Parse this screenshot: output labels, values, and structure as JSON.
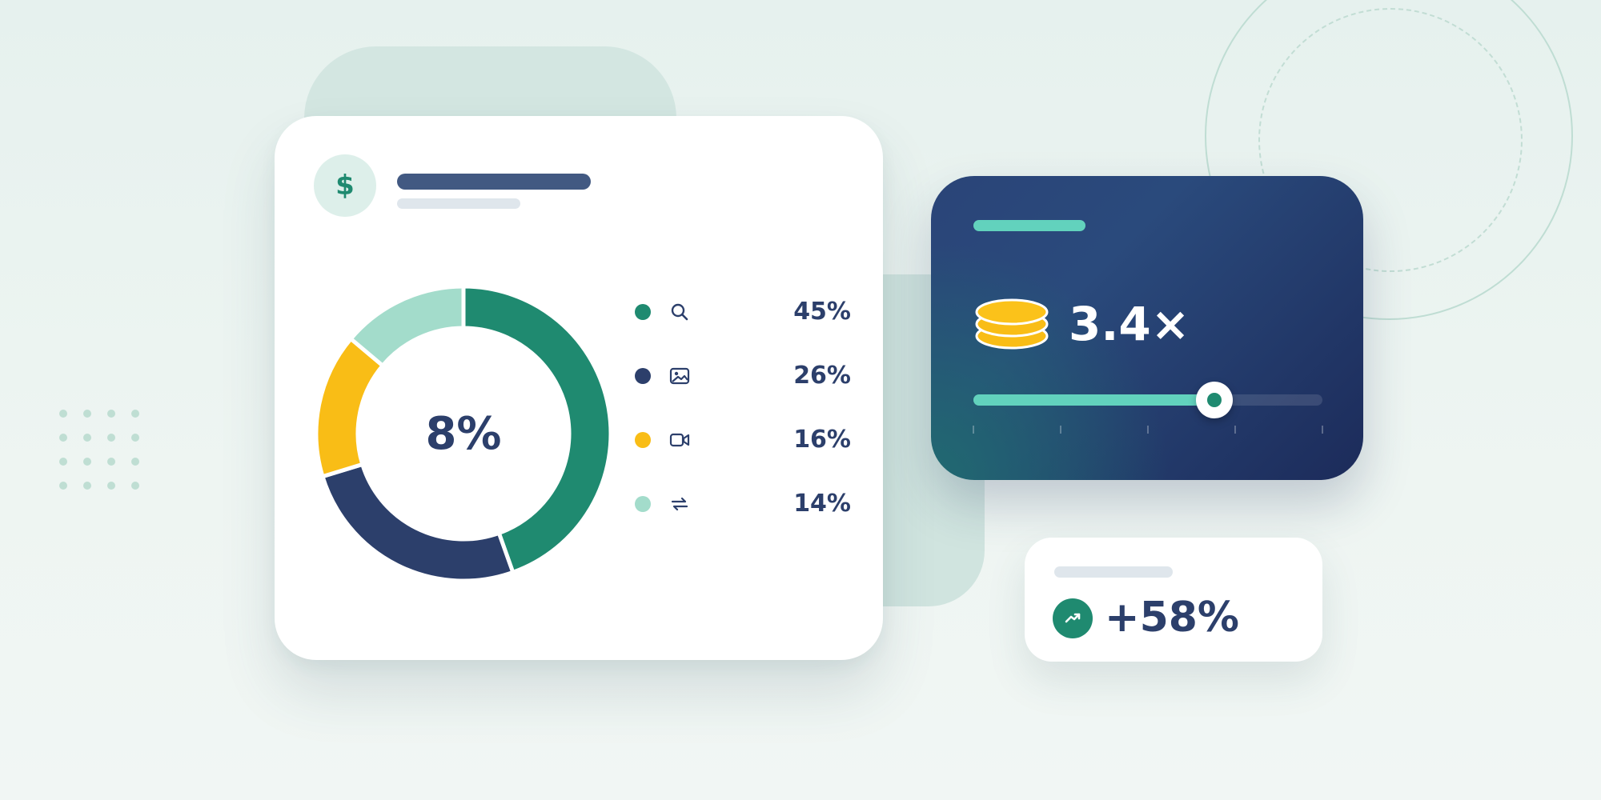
{
  "colors": {
    "teal": "#1f8a70",
    "navy": "#2c3f6b",
    "yellow": "#f9bd16",
    "mint": "#a3dccb",
    "accent": "#62d2bd"
  },
  "breakdown_card": {
    "badge_icon": "dollar-icon",
    "badge_symbol": "$",
    "center_value": "8%",
    "legend": [
      {
        "icon": "search-icon",
        "value": "45%",
        "color": "#1f8a70"
      },
      {
        "icon": "image-icon",
        "value": "26%",
        "color": "#2c3f6b"
      },
      {
        "icon": "video-icon",
        "value": "16%",
        "color": "#f9bd16"
      },
      {
        "icon": "repeat-icon",
        "value": "14%",
        "color": "#a3dccb"
      }
    ]
  },
  "chart_data": {
    "type": "pie",
    "style": "donut",
    "values": [
      45,
      26,
      16,
      14
    ],
    "colors": [
      "#1f8a70",
      "#2c3f6b",
      "#f9bd16",
      "#a3dccb"
    ],
    "center_label": "8%"
  },
  "multiplier_card": {
    "icon": "coin-stack-icon",
    "value": "3.4×",
    "slider_level": 0.69,
    "tick_count": 5
  },
  "growth_card": {
    "icon": "trending-up-icon",
    "value": "+58%"
  }
}
